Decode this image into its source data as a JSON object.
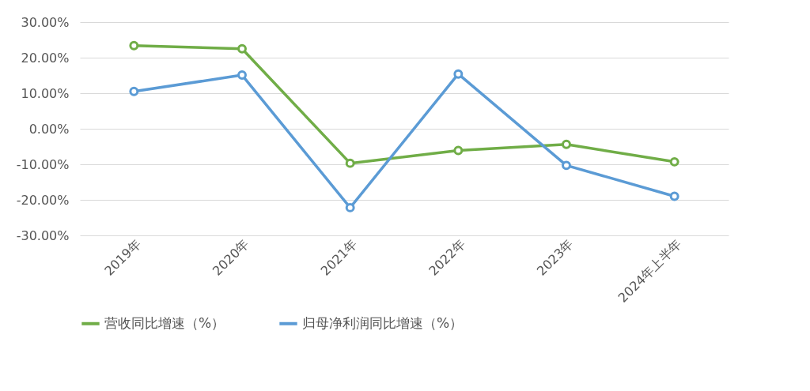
{
  "chart_data": {
    "type": "line",
    "categories": [
      "2019年",
      "2020年",
      "2021年",
      "2022年",
      "2023年",
      "2024年上半年"
    ],
    "series": [
      {
        "name": "营收同比增速（%）",
        "color": "#70ad47",
        "values": [
          23.4,
          22.5,
          -9.7,
          -6.1,
          -4.4,
          -9.3
        ]
      },
      {
        "name": "归母净利润同比增速（%）",
        "color": "#5b9bd5",
        "values": [
          10.5,
          15.1,
          -22.2,
          15.4,
          -10.3,
          -19.0
        ]
      }
    ],
    "ylim": [
      -30,
      30
    ],
    "yticks": [
      {
        "value": -30,
        "label": "-30.00%"
      },
      {
        "value": -20,
        "label": "-20.00%"
      },
      {
        "value": -10,
        "label": "-10.00%"
      },
      {
        "value": 0,
        "label": "0.00%"
      },
      {
        "value": 10,
        "label": "10.00%"
      },
      {
        "value": 20,
        "label": "20.00%"
      },
      {
        "value": 30,
        "label": "30.00%"
      }
    ],
    "grid": "y",
    "legend": "bottom",
    "marker": "circle"
  }
}
